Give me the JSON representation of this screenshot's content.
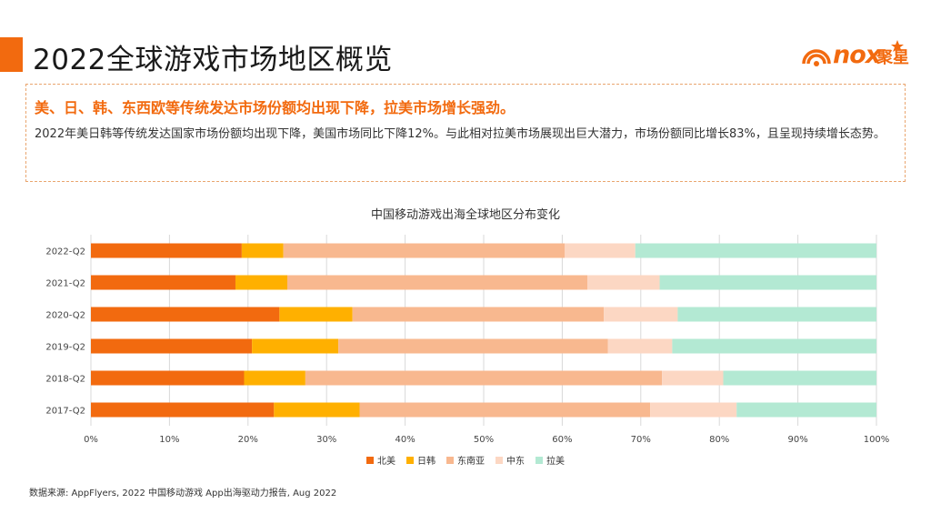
{
  "page": {
    "title": "2022全球游戏市场地区概览",
    "logo_text": "nox",
    "logo_cn": "聚星"
  },
  "summary": {
    "headline": "美、日、韩、东西欧等传统发达市场份额均出现下降，拉美市场增长强劲。",
    "body": "2022年美日韩等传统发达国家市场份额均出现下降，美国市场同比下降12%。与此相对拉美市场展现出巨大潜力，市场份额同比增长83%，且呈现持续增长态势。"
  },
  "source": "数据来源: AppFlyers, 2022 中国移动游戏 App出海驱动力报告, Aug 2022",
  "colors": {
    "accent": "#f26a0f"
  },
  "chart_data": {
    "type": "bar",
    "orientation": "horizontal",
    "stacked": "percent",
    "title": "中国移动游戏出海全球地区分布变化",
    "categories": [
      "2022-Q2",
      "2021-Q2",
      "2020-Q2",
      "2019-Q2",
      "2018-Q2",
      "2017-Q2"
    ],
    "series": [
      {
        "name": "北美",
        "color": "#f26a0f",
        "values": [
          19.2,
          18.4,
          24.0,
          20.5,
          19.5,
          23.3
        ]
      },
      {
        "name": "日韩",
        "color": "#ffb000",
        "values": [
          5.3,
          6.6,
          9.3,
          11.0,
          7.8,
          10.9
        ]
      },
      {
        "name": "东南亚",
        "color": "#f8b88f",
        "values": [
          35.8,
          38.2,
          32.0,
          34.3,
          45.4,
          37.0
        ]
      },
      {
        "name": "中东",
        "color": "#fcd7c3",
        "values": [
          9.0,
          9.2,
          9.4,
          8.2,
          7.8,
          11.0
        ]
      },
      {
        "name": "拉美",
        "color": "#b3e9d3",
        "values": [
          30.7,
          27.6,
          25.3,
          26.0,
          19.5,
          17.8
        ]
      }
    ],
    "xlim": [
      0,
      100
    ],
    "xticks": [
      "0%",
      "10%",
      "20%",
      "30%",
      "40%",
      "50%",
      "60%",
      "70%",
      "80%",
      "90%",
      "100%"
    ],
    "grid": true,
    "legend": "bottom"
  }
}
